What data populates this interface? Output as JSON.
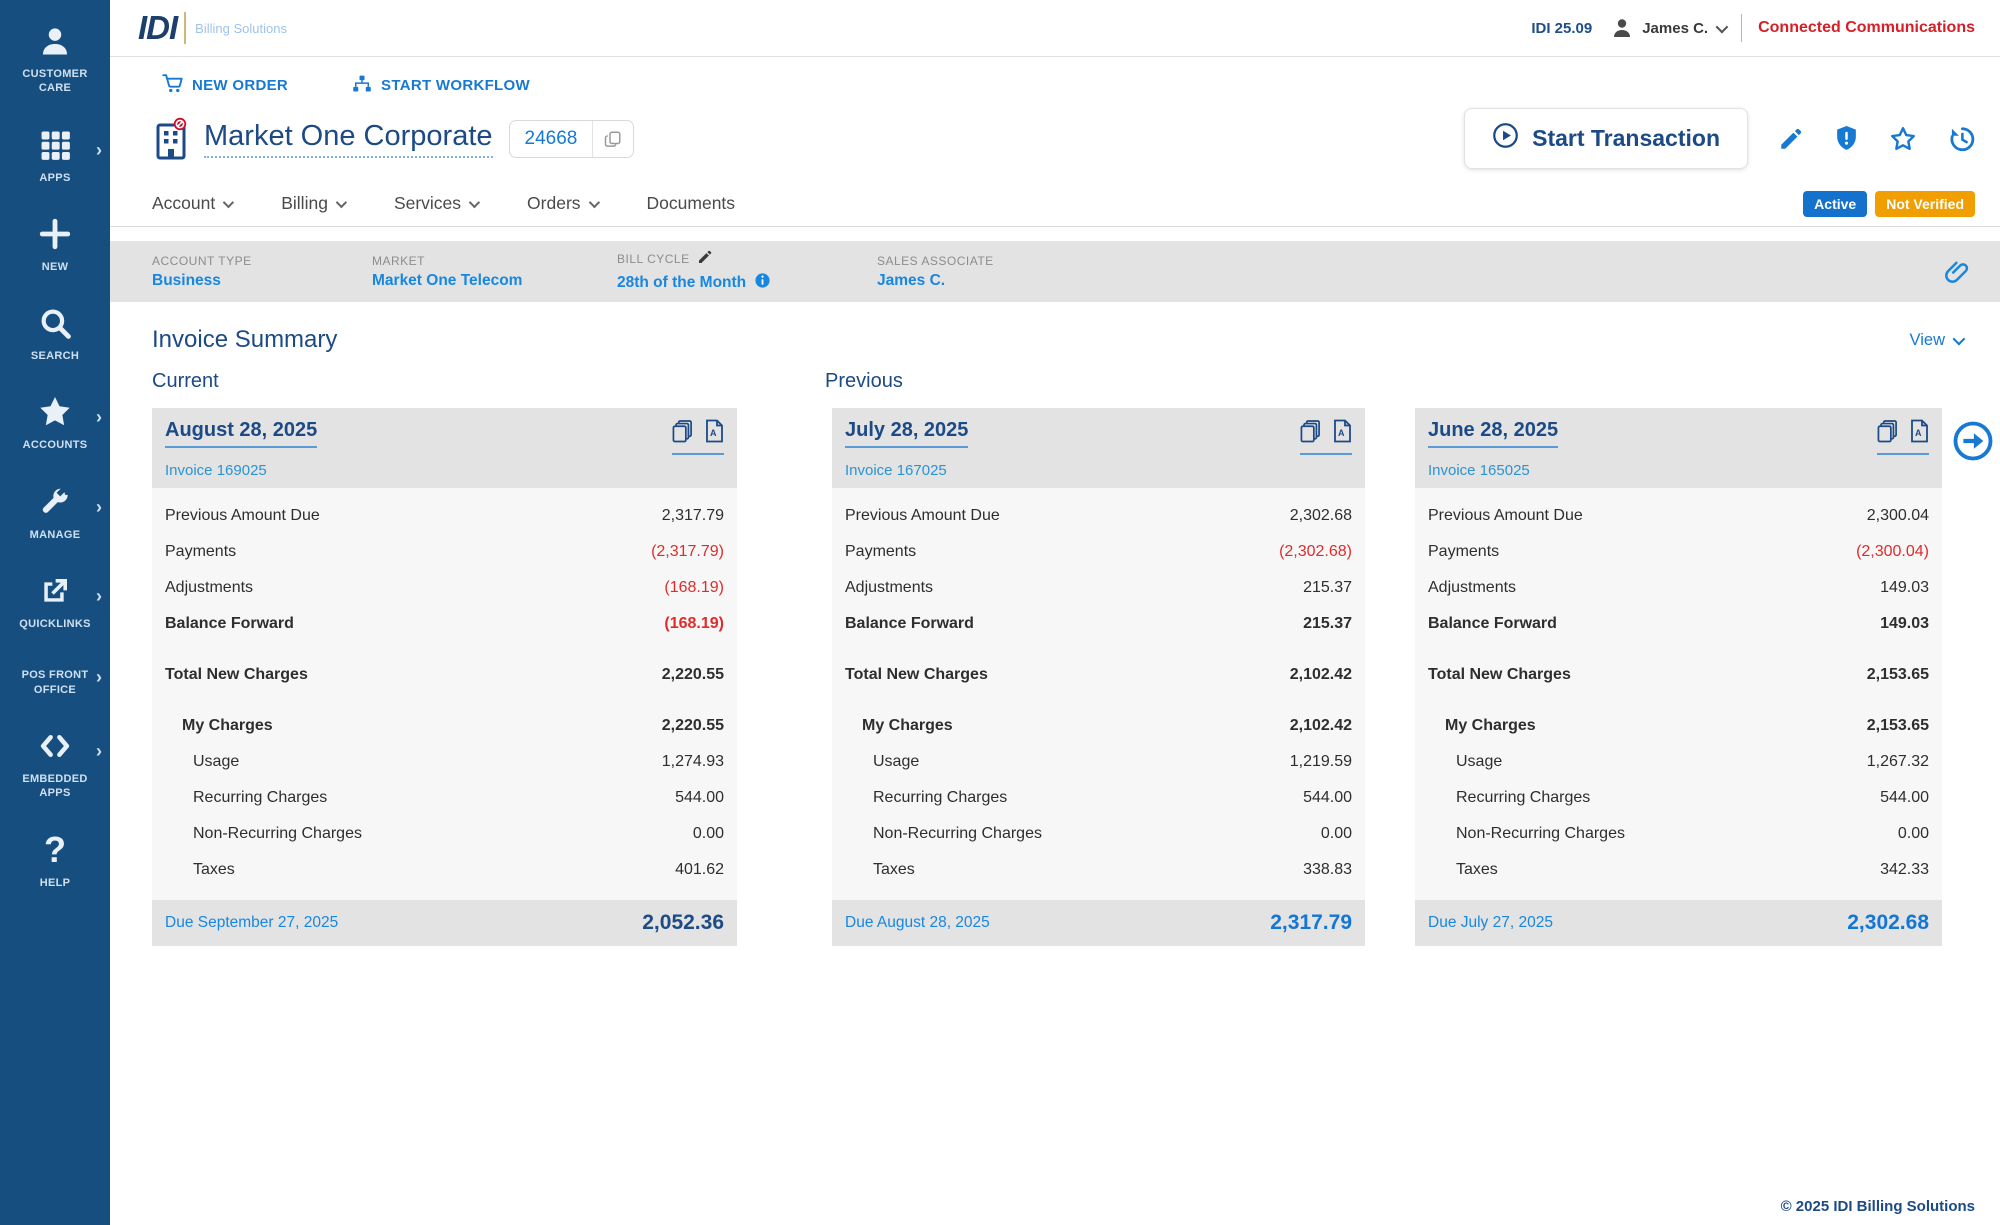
{
  "header": {
    "logo_main": "IDI",
    "logo_sub": "Billing Solutions",
    "version": "IDI 25.09",
    "user": "James C.",
    "org": "Connected Communications"
  },
  "sidebar": {
    "items": [
      {
        "label": "CUSTOMER CARE",
        "icon": "person",
        "chevron": false
      },
      {
        "label": "APPS",
        "icon": "grid",
        "chevron": true
      },
      {
        "label": "NEW",
        "icon": "plus",
        "chevron": false
      },
      {
        "label": "SEARCH",
        "icon": "search",
        "chevron": false
      },
      {
        "label": "ACCOUNTS",
        "icon": "star",
        "chevron": true
      },
      {
        "label": "MANAGE",
        "icon": "wrench",
        "chevron": true
      },
      {
        "label": "QUICKLINKS",
        "icon": "external",
        "chevron": true
      },
      {
        "label": "POS FRONT OFFICE",
        "icon": "none",
        "chevron": true
      },
      {
        "label": "EMBEDDED APPS",
        "icon": "code",
        "chevron": true
      },
      {
        "label": "HELP",
        "icon": "question",
        "chevron": false
      }
    ]
  },
  "toolbar": {
    "new_order": "NEW ORDER",
    "start_workflow": "START WORKFLOW"
  },
  "account": {
    "name": "Market One Corporate",
    "id": "24668",
    "start_transaction_label": "Start Transaction",
    "tabs": [
      {
        "label": "Account",
        "caret": true
      },
      {
        "label": "Billing",
        "caret": true
      },
      {
        "label": "Services",
        "caret": true
      },
      {
        "label": "Orders",
        "caret": true
      },
      {
        "label": "Documents",
        "caret": false
      }
    ],
    "badges": [
      {
        "label": "Active",
        "color": "#1472cc"
      },
      {
        "label": "Not Verified",
        "color": "#f09e00"
      }
    ]
  },
  "info_bar": {
    "fields": [
      {
        "label": "ACCOUNT TYPE",
        "value": "Business",
        "edit_icon": false,
        "info_icon": false
      },
      {
        "label": "MARKET",
        "value": "Market One Telecom",
        "edit_icon": false,
        "info_icon": false
      },
      {
        "label": "BILL CYCLE",
        "value": "28th of the Month",
        "edit_icon": true,
        "info_icon": true
      },
      {
        "label": "SALES ASSOCIATE",
        "value": "James C.",
        "edit_icon": false,
        "info_icon": false
      }
    ]
  },
  "invoice_summary": {
    "title": "Invoice Summary",
    "view_label": "View",
    "groups": {
      "current": "Current",
      "previous": "Previous"
    },
    "cards": [
      {
        "date": "August 28, 2025",
        "invoice": "Invoice 169025",
        "rows": [
          {
            "label": "Previous Amount Due",
            "value": "2,317.79",
            "neg": false,
            "bold": false,
            "indent": 0,
            "gap": false
          },
          {
            "label": "Payments",
            "value": "(2,317.79)",
            "neg": true,
            "bold": false,
            "indent": 0,
            "gap": false
          },
          {
            "label": "Adjustments",
            "value": "(168.19)",
            "neg": true,
            "bold": false,
            "indent": 0,
            "gap": false
          },
          {
            "label": "Balance Forward",
            "value": "(168.19)",
            "neg": true,
            "bold": true,
            "indent": 0,
            "gap": false
          },
          {
            "label": "Total New Charges",
            "value": "2,220.55",
            "neg": false,
            "bold": true,
            "indent": 0,
            "gap": true
          },
          {
            "label": "My Charges",
            "value": "2,220.55",
            "neg": false,
            "bold": true,
            "indent": 1,
            "gap": true
          },
          {
            "label": "Usage",
            "value": "1,274.93",
            "neg": false,
            "bold": false,
            "indent": 2,
            "gap": false
          },
          {
            "label": "Recurring Charges",
            "value": "544.00",
            "neg": false,
            "bold": false,
            "indent": 2,
            "gap": false
          },
          {
            "label": "Non-Recurring Charges",
            "value": "0.00",
            "neg": false,
            "bold": false,
            "indent": 2,
            "gap": false
          },
          {
            "label": "Taxes",
            "value": "401.62",
            "neg": false,
            "bold": false,
            "indent": 2,
            "gap": false
          }
        ],
        "due_label": "Due September 27, 2025",
        "total": "2,052.36",
        "total_color": "#1d4b85"
      },
      {
        "date": "July 28, 2025",
        "invoice": "Invoice 167025",
        "rows": [
          {
            "label": "Previous Amount Due",
            "value": "2,302.68",
            "neg": false,
            "bold": false,
            "indent": 0,
            "gap": false
          },
          {
            "label": "Payments",
            "value": "(2,302.68)",
            "neg": true,
            "bold": false,
            "indent": 0,
            "gap": false
          },
          {
            "label": "Adjustments",
            "value": "215.37",
            "neg": false,
            "bold": false,
            "indent": 0,
            "gap": false
          },
          {
            "label": "Balance Forward",
            "value": "215.37",
            "neg": false,
            "bold": true,
            "indent": 0,
            "gap": false
          },
          {
            "label": "Total New Charges",
            "value": "2,102.42",
            "neg": false,
            "bold": true,
            "indent": 0,
            "gap": true
          },
          {
            "label": "My Charges",
            "value": "2,102.42",
            "neg": false,
            "bold": true,
            "indent": 1,
            "gap": true
          },
          {
            "label": "Usage",
            "value": "1,219.59",
            "neg": false,
            "bold": false,
            "indent": 2,
            "gap": false
          },
          {
            "label": "Recurring Charges",
            "value": "544.00",
            "neg": false,
            "bold": false,
            "indent": 2,
            "gap": false
          },
          {
            "label": "Non-Recurring Charges",
            "value": "0.00",
            "neg": false,
            "bold": false,
            "indent": 2,
            "gap": false
          },
          {
            "label": "Taxes",
            "value": "338.83",
            "neg": false,
            "bold": false,
            "indent": 2,
            "gap": false
          }
        ],
        "due_label": "Due August 28, 2025",
        "total": "2,317.79",
        "total_color": "#1276d6"
      },
      {
        "date": "June 28, 2025",
        "invoice": "Invoice 165025",
        "rows": [
          {
            "label": "Previous Amount Due",
            "value": "2,300.04",
            "neg": false,
            "bold": false,
            "indent": 0,
            "gap": false
          },
          {
            "label": "Payments",
            "value": "(2,300.04)",
            "neg": true,
            "bold": false,
            "indent": 0,
            "gap": false
          },
          {
            "label": "Adjustments",
            "value": "149.03",
            "neg": false,
            "bold": false,
            "indent": 0,
            "gap": false
          },
          {
            "label": "Balance Forward",
            "value": "149.03",
            "neg": false,
            "bold": true,
            "indent": 0,
            "gap": false
          },
          {
            "label": "Total New Charges",
            "value": "2,153.65",
            "neg": false,
            "bold": true,
            "indent": 0,
            "gap": true
          },
          {
            "label": "My Charges",
            "value": "2,153.65",
            "neg": false,
            "bold": true,
            "indent": 1,
            "gap": true
          },
          {
            "label": "Usage",
            "value": "1,267.32",
            "neg": false,
            "bold": false,
            "indent": 2,
            "gap": false
          },
          {
            "label": "Recurring Charges",
            "value": "544.00",
            "neg": false,
            "bold": false,
            "indent": 2,
            "gap": false
          },
          {
            "label": "Non-Recurring Charges",
            "value": "0.00",
            "neg": false,
            "bold": false,
            "indent": 2,
            "gap": false
          },
          {
            "label": "Taxes",
            "value": "342.33",
            "neg": false,
            "bold": false,
            "indent": 2,
            "gap": false
          }
        ],
        "due_label": "Due July 27, 2025",
        "total": "2,302.68",
        "total_color": "#1276d6"
      }
    ]
  },
  "footer": {
    "copyright": "© 2025 IDI Billing Solutions"
  }
}
